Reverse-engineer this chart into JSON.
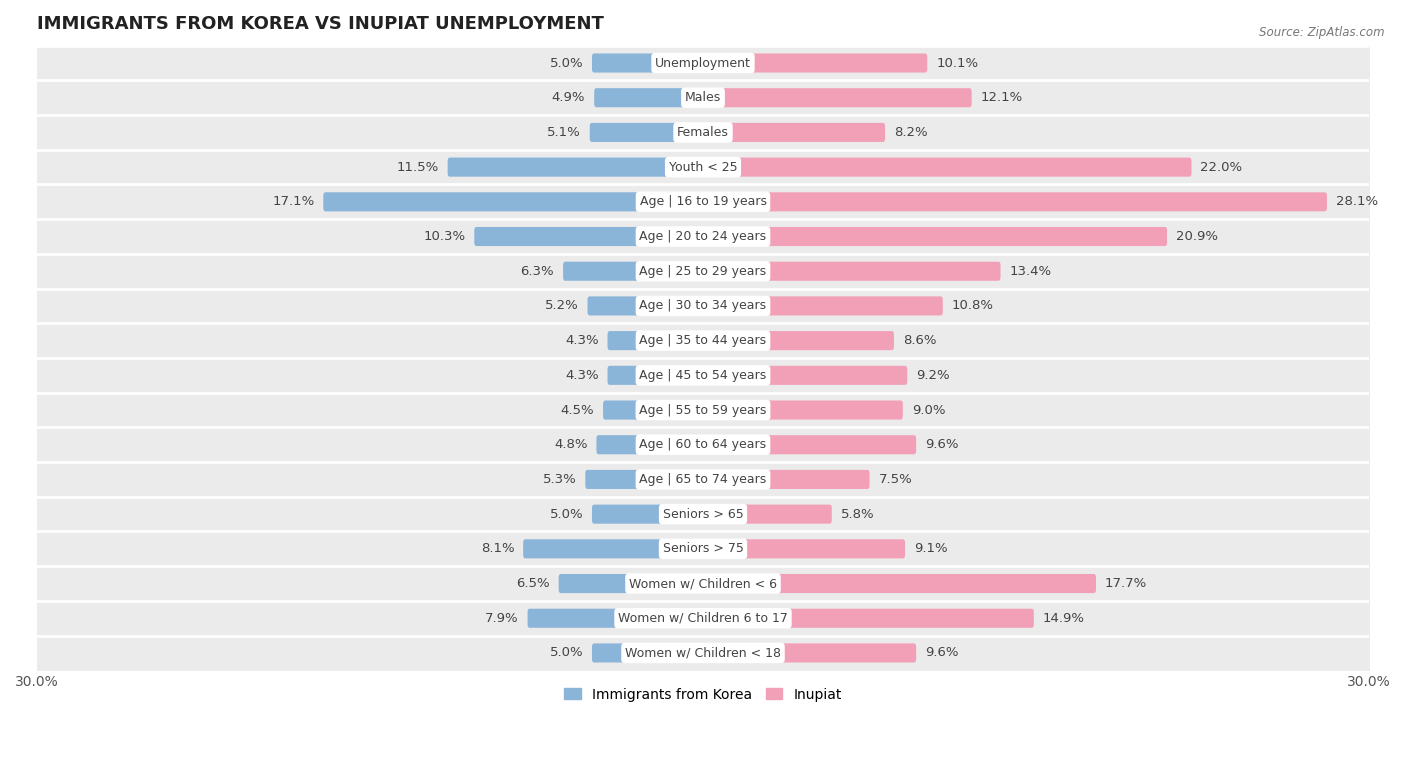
{
  "title": "IMMIGRANTS FROM KOREA VS INUPIAT UNEMPLOYMENT",
  "source": "Source: ZipAtlas.com",
  "categories": [
    "Unemployment",
    "Males",
    "Females",
    "Youth < 25",
    "Age | 16 to 19 years",
    "Age | 20 to 24 years",
    "Age | 25 to 29 years",
    "Age | 30 to 34 years",
    "Age | 35 to 44 years",
    "Age | 45 to 54 years",
    "Age | 55 to 59 years",
    "Age | 60 to 64 years",
    "Age | 65 to 74 years",
    "Seniors > 65",
    "Seniors > 75",
    "Women w/ Children < 6",
    "Women w/ Children 6 to 17",
    "Women w/ Children < 18"
  ],
  "korea_values": [
    5.0,
    4.9,
    5.1,
    11.5,
    17.1,
    10.3,
    6.3,
    5.2,
    4.3,
    4.3,
    4.5,
    4.8,
    5.3,
    5.0,
    8.1,
    6.5,
    7.9,
    5.0
  ],
  "inupiat_values": [
    10.1,
    12.1,
    8.2,
    22.0,
    28.1,
    20.9,
    13.4,
    10.8,
    8.6,
    9.2,
    9.0,
    9.6,
    7.5,
    5.8,
    9.1,
    17.7,
    14.9,
    9.6
  ],
  "korea_color": "#8ab4d8",
  "inupiat_color": "#f2a0b8",
  "bar_height": 0.55,
  "xlim": 30.0,
  "row_bg_color": "#ebebeb",
  "row_sep_color": "#ffffff",
  "title_fontsize": 13,
  "value_fontsize": 9.5,
  "category_fontsize": 9,
  "legend_korea": "Immigrants from Korea",
  "legend_inupiat": "Inupiat",
  "axis_tick_fontsize": 10
}
